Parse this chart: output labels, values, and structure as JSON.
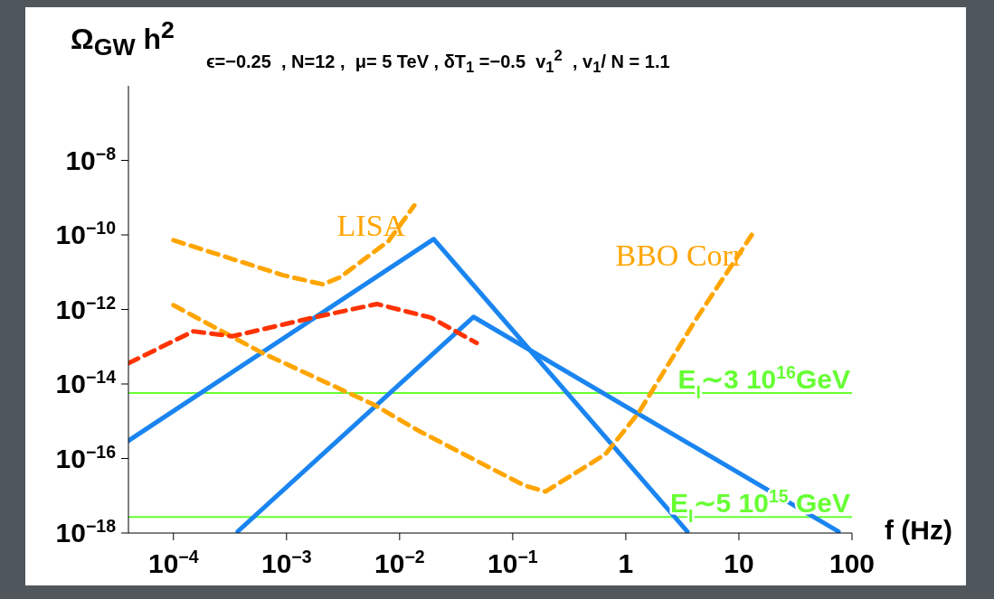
{
  "chart_data": {
    "type": "line",
    "ylabel": "Ω$_{GW}$ h$^{2}$",
    "subtitle": "ϵ=−0.25  , N=12 ,  μ= 5 TeV , δT$_{1}$ =−0.5  v$_{1}$$^{2}$  , v$_{1}$/ N = 1.1",
    "xlabel": "f (Hz)",
    "log": "xy",
    "xlim": [
      4e-05,
      100
    ],
    "ylim": [
      1e-18,
      1e-06
    ],
    "xticks": [
      {
        "value": 0.0001,
        "label": "10$^{−4}$"
      },
      {
        "value": 0.001,
        "label": "10$^{−3}$"
      },
      {
        "value": 0.01,
        "label": "10$^{−2}$"
      },
      {
        "value": 0.1,
        "label": "10$^{−1}$"
      },
      1,
      10,
      100
    ],
    "yticks": [
      {
        "value": 1e-18,
        "label": "10$^{−18}$"
      },
      {
        "value": 1e-16,
        "label": "10$^{−16}$"
      },
      {
        "value": 1e-14,
        "label": "10$^{−14}$"
      },
      {
        "value": 1e-12,
        "label": "10$^{−12}$"
      },
      {
        "value": 1e-10,
        "label": "10$^{−10}$"
      },
      {
        "value": 1e-08,
        "label": "10$^{−8}$"
      }
    ],
    "grid": false,
    "series": [
      {
        "color": "#1a85f0",
        "line_style": "solid",
        "x": [
          4e-05,
          0.02,
          3.5
        ],
        "values": [
          3e-16,
          7.7e-11,
          1.1e-18
        ]
      },
      {
        "color": "#1a85f0",
        "line_style": "solid",
        "x": [
          0.00037,
          0.045,
          76
        ],
        "values": [
          1.1e-18,
          6.3e-13,
          1.1e-18
        ]
      },
      {
        "name": "LISA",
        "color": "#ffa500",
        "line_style": "dashed",
        "x": [
          0.0001,
          0.00093,
          0.0021,
          0.003,
          0.008,
          0.0135
        ],
        "values": [
          7.2e-11,
          8.3e-12,
          4.7e-12,
          7.4e-12,
          6.9e-11,
          6.2e-10
        ]
      },
      {
        "name": "BBO Corr",
        "color": "#ffa500",
        "line_style": "dashed",
        "x": [
          0.0001,
          0.0006,
          0.0059,
          0.0148,
          0.126,
          0.195,
          0.66,
          1.3,
          4.2,
          13
        ],
        "values": [
          1.3e-12,
          7e-14,
          2.8e-15,
          5.5e-16,
          1.9e-17,
          1.3e-17,
          1.3e-16,
          1.7e-15,
          5.6e-13,
          1e-10
        ]
      },
      {
        "color": "#ff3300",
        "line_style": "dashed",
        "x": [
          4e-05,
          0.00015,
          0.00033,
          0.0017,
          0.0063,
          0.019,
          0.048
        ],
        "values": [
          3.6e-14,
          2.6e-13,
          1.9e-13,
          6e-13,
          1.4e-12,
          6e-13,
          1.26e-13
        ]
      }
    ],
    "ref_lines": [
      {
        "axis": "y",
        "value": 5.7e-15,
        "label": "E$_{I}$∼3 10$^{16}$GeV",
        "color": "#66ff33"
      },
      {
        "axis": "y",
        "value": 2.7e-18,
        "label": "E$_{I}$∼5 10$^{15}$ GeV",
        "color": "#66ff33"
      }
    ]
  }
}
